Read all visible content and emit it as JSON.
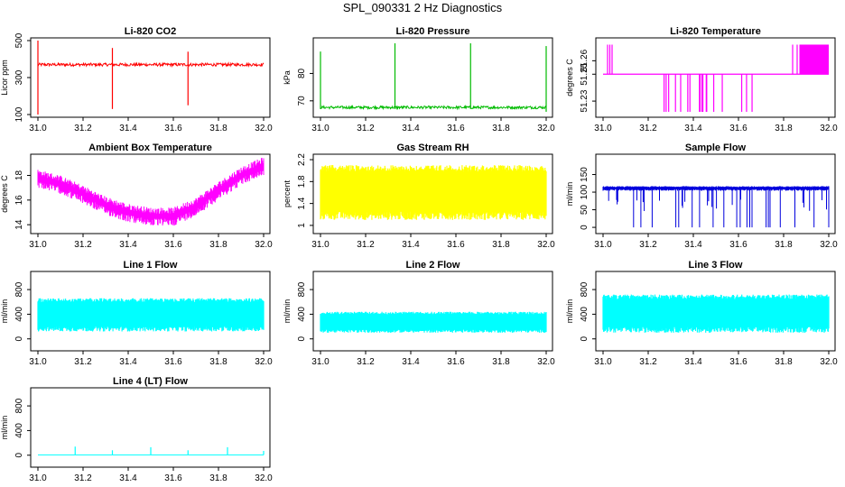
{
  "page_title": "SPL_090331  2 Hz Diagnostics",
  "chart_data": [
    {
      "id": "co2",
      "type": "line",
      "title": "Li-820 CO2",
      "ylabel": "Licor ppm",
      "color": "#ff0000",
      "xlim": [
        31.0,
        32.0
      ],
      "ylim": [
        100,
        500
      ],
      "yticks": [
        100,
        300,
        500
      ],
      "baseline": 370,
      "noise": 8,
      "spikes": [
        {
          "x": 31.0,
          "hi": 500,
          "lo": 100
        },
        {
          "x": 31.33,
          "hi": 460,
          "lo": 130
        },
        {
          "x": 31.665,
          "hi": 440,
          "lo": 150
        }
      ]
    },
    {
      "id": "pressure",
      "type": "line",
      "title": "Li-820 Pressure",
      "ylabel": "kPa",
      "color": "#00bb00",
      "xlim": [
        31.0,
        32.0
      ],
      "ylim": [
        65,
        92
      ],
      "yticks": [
        70,
        80
      ],
      "baseline": 67.6,
      "noise": 0.5,
      "spikes": [
        {
          "x": 31.0,
          "hi": 88,
          "lo": 67
        },
        {
          "x": 31.33,
          "hi": 91,
          "lo": 67
        },
        {
          "x": 31.665,
          "hi": 91,
          "lo": 67
        },
        {
          "x": 32.0,
          "hi": 90,
          "lo": 66
        }
      ]
    },
    {
      "id": "temperature",
      "type": "line",
      "title": "Li-820 Temperature",
      "ylabel": "degrees C",
      "color": "#ff00ff",
      "xlim": [
        31.0,
        32.0
      ],
      "ylim": [
        51.22,
        51.275
      ],
      "yticks": [
        51.23,
        51.25,
        51.26
      ],
      "baseline": 51.25
    },
    {
      "id": "ambient",
      "type": "line",
      "title": "Ambient Box Temperature",
      "ylabel": "degrees C",
      "color": "#ff00ff",
      "xlim": [
        31.0,
        32.0
      ],
      "ylim": [
        13.5,
        19.5
      ],
      "yticks": [
        14,
        16,
        18
      ],
      "x": [
        31.0,
        31.1,
        31.2,
        31.3,
        31.4,
        31.5,
        31.6,
        31.7,
        31.8,
        31.9,
        32.0
      ],
      "y": [
        17.8,
        17.3,
        16.5,
        15.6,
        15.0,
        14.7,
        14.7,
        15.5,
        16.8,
        18.0,
        18.8
      ]
    },
    {
      "id": "rh",
      "type": "band",
      "title": "Gas Stream RH",
      "ylabel": "percent",
      "color": "#ffff00",
      "xlim": [
        31.0,
        32.0
      ],
      "ylim": [
        0.9,
        2.25
      ],
      "yticks": [
        1.0,
        1.4,
        1.8,
        2.2
      ],
      "band": [
        1.1,
        2.1
      ]
    },
    {
      "id": "sample",
      "type": "line",
      "title": "Sample Flow",
      "ylabel": "ml/min",
      "color": "#0000dd",
      "xlim": [
        31.0,
        32.0
      ],
      "ylim": [
        -10,
        200
      ],
      "yticks": [
        0,
        50,
        100,
        150
      ],
      "baseline": 112
    },
    {
      "id": "line1",
      "type": "band",
      "title": "Line 1 Flow",
      "ylabel": "ml/min",
      "color": "#00ffff",
      "xlim": [
        31.0,
        32.0
      ],
      "ylim": [
        -150,
        1050
      ],
      "yticks": [
        0,
        400,
        800
      ],
      "band": [
        120,
        660
      ]
    },
    {
      "id": "line2",
      "type": "band",
      "title": "Line 2 Flow",
      "ylabel": "ml/min",
      "color": "#00ffff",
      "xlim": [
        31.0,
        32.0
      ],
      "ylim": [
        -150,
        1050
      ],
      "yticks": [
        0,
        400,
        800
      ],
      "band": [
        100,
        440
      ]
    },
    {
      "id": "line3",
      "type": "band",
      "title": "Line 3 Flow",
      "ylabel": "ml/min",
      "color": "#00ffff",
      "xlim": [
        31.0,
        32.0
      ],
      "ylim": [
        -150,
        1050
      ],
      "yticks": [
        0,
        400,
        800
      ],
      "band": [
        100,
        720
      ]
    },
    {
      "id": "line4",
      "type": "line",
      "title": "Line 4 (LT) Flow",
      "ylabel": "ml/min",
      "color": "#00ffff",
      "xlim": [
        31.0,
        32.0
      ],
      "ylim": [
        -150,
        1050
      ],
      "yticks": [
        0,
        400,
        800
      ],
      "baseline": 5,
      "spikes": [
        {
          "x": 31.165,
          "hi": 140,
          "lo": 5
        },
        {
          "x": 31.33,
          "hi": 80,
          "lo": 5
        },
        {
          "x": 31.5,
          "hi": 130,
          "lo": 5
        },
        {
          "x": 31.665,
          "hi": 80,
          "lo": 5
        },
        {
          "x": 31.84,
          "hi": 130,
          "lo": 5
        },
        {
          "x": 32.0,
          "hi": 70,
          "lo": 5
        }
      ]
    }
  ],
  "xticks": [
    "31.0",
    "31.2",
    "31.4",
    "31.6",
    "31.8",
    "32.0"
  ]
}
